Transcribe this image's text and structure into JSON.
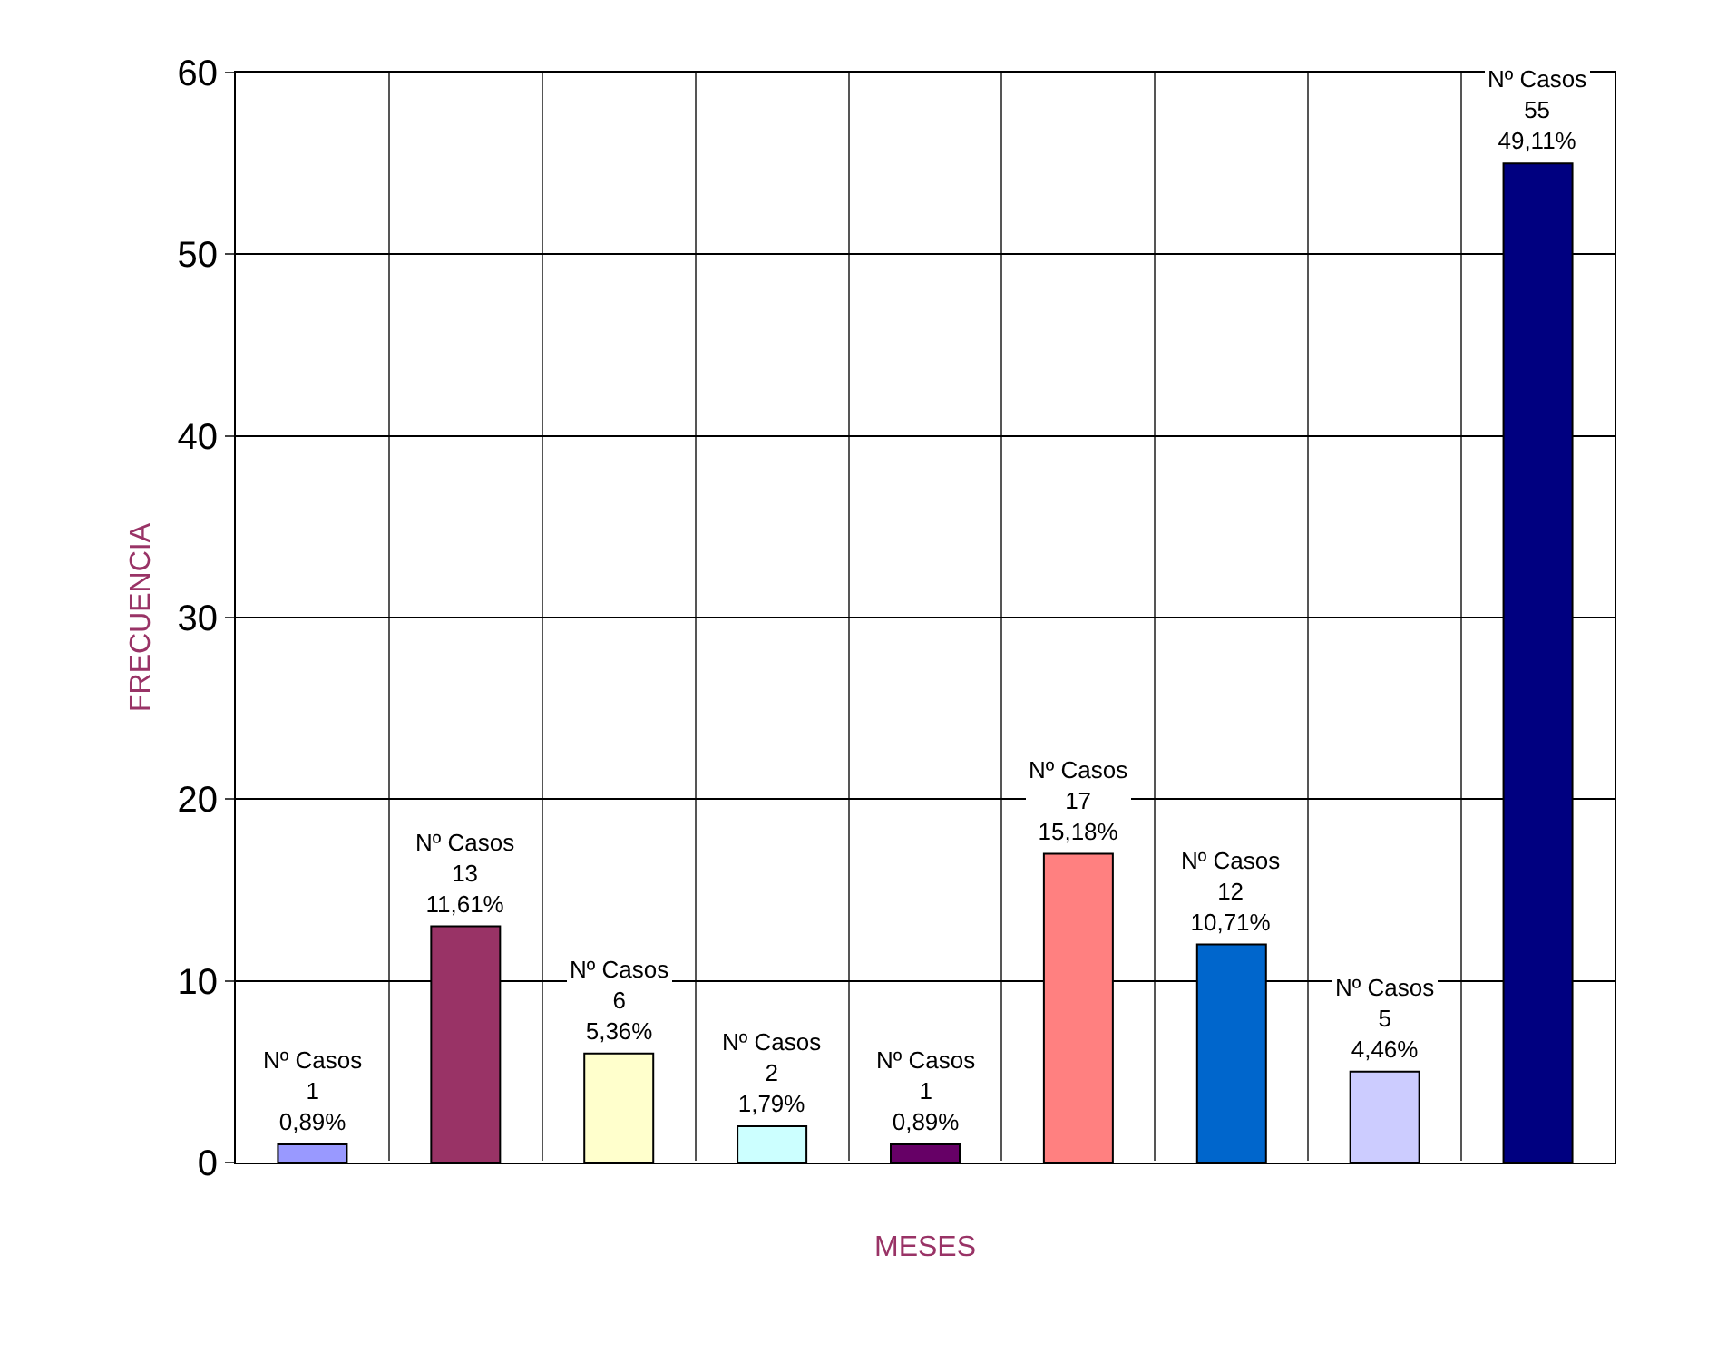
{
  "chart_data": {
    "type": "bar",
    "xlabel": "MESES",
    "ylabel": "FRECUENCIA",
    "categories": [
      null,
      null,
      null,
      null,
      null,
      null,
      null,
      null,
      null
    ],
    "values": [
      1,
      13,
      6,
      2,
      1,
      17,
      12,
      5,
      55
    ],
    "colors": [
      "#9999ff",
      "#993366",
      "#ffffcc",
      "#ccffff",
      "#660066",
      "#ff8080",
      "#0066cc",
      "#ccccff",
      "#000080"
    ],
    "value_labels": [
      "Nº Casos\n1\n0,89%",
      "Nº Casos\n13\n11,61%",
      "Nº Casos\n6\n5,36%",
      "Nº Casos\n2\n1,79%",
      "Nº Casos\n1\n0,89%",
      "Nº Casos\n17\n15,18%",
      "Nº Casos\n12\n10,71%",
      "Nº Casos\n5\n4,46%",
      "Nº Casos\n55\n49,11%"
    ],
    "ylim": [
      0,
      60
    ],
    "yticks": [
      0,
      10,
      20,
      30,
      40,
      50,
      60
    ],
    "grid": true,
    "tick_labels": "y"
  }
}
